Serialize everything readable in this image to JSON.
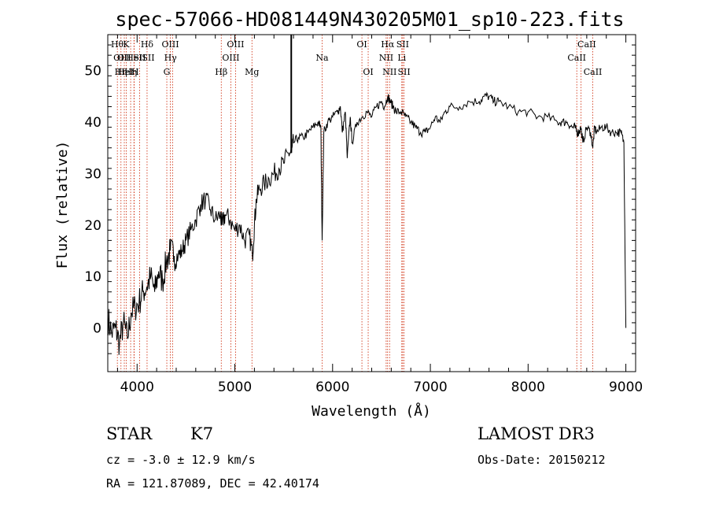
{
  "chart_data": {
    "type": "line",
    "title": "spec-57066-HD081449N430205M01_sp10-223.fits",
    "xlabel": "Wavelength (Å)",
    "ylabel": "Flux (relative)",
    "xlim": [
      3700,
      9100
    ],
    "ylim": [
      -8.5,
      57
    ],
    "xticks": [
      4000,
      5000,
      6000,
      7000,
      8000,
      9000
    ],
    "yticks": [
      0,
      10,
      20,
      30,
      40,
      50
    ],
    "series": [
      {
        "name": "flux",
        "x": [
          3700,
          3740,
          3780,
          3820,
          3860,
          3900,
          3940,
          3980,
          4020,
          4060,
          4100,
          4140,
          4180,
          4220,
          4260,
          4300,
          4340,
          4380,
          4420,
          4460,
          4500,
          4550,
          4600,
          4650,
          4700,
          4750,
          4800,
          4850,
          4870,
          4900,
          4950,
          5000,
          5050,
          5100,
          5150,
          5180,
          5200,
          5220,
          5250,
          5300,
          5350,
          5400,
          5450,
          5500,
          5550,
          5580,
          5600,
          5650,
          5700,
          5750,
          5800,
          5850,
          5880,
          5893,
          5910,
          5950,
          6000,
          6050,
          6080,
          6100,
          6130,
          6150,
          6180,
          6200,
          6250,
          6300,
          6350,
          6400,
          6450,
          6500,
          6530,
          6563,
          6590,
          6620,
          6650,
          6700,
          6750,
          6800,
          6850,
          6900,
          6950,
          7000,
          7050,
          7100,
          7150,
          7200,
          7300,
          7400,
          7500,
          7550,
          7600,
          7650,
          7700,
          7800,
          7900,
          8000,
          8100,
          8200,
          8300,
          8350,
          8400,
          8450,
          8480,
          8500,
          8520,
          8540,
          8560,
          8600,
          8640,
          8662,
          8680,
          8700,
          8750,
          8800,
          8850,
          8900,
          8950,
          8980,
          9000
        ],
        "y": [
          2,
          -1,
          0,
          -3,
          1,
          -2,
          3,
          4,
          5,
          7,
          8,
          10,
          7,
          11,
          9,
          13,
          15,
          14,
          14,
          15,
          17,
          19,
          21,
          24,
          25,
          23,
          21,
          22,
          20,
          22,
          21,
          19,
          20,
          17,
          18,
          14,
          20,
          25,
          27,
          28,
          29,
          30,
          31,
          32,
          34,
          34,
          36,
          37,
          37,
          38,
          39,
          40,
          39,
          17,
          38,
          40,
          41,
          42,
          43,
          38,
          42,
          33,
          41,
          36,
          40,
          41,
          42,
          41,
          43,
          44,
          43,
          45,
          44,
          43,
          42,
          42,
          41,
          40,
          39,
          38,
          38,
          39,
          41,
          40,
          42,
          43,
          43,
          44,
          44,
          45,
          45,
          44,
          44,
          43,
          42,
          42,
          41,
          41,
          40,
          40,
          40,
          39,
          39,
          38,
          38,
          39,
          36,
          39,
          38,
          35,
          39,
          38,
          39,
          39,
          38,
          38,
          38,
          36,
          0
        ]
      }
    ],
    "line_labels": [
      {
        "wl": 3797,
        "text": "Hθ",
        "row": 1
      },
      {
        "wl": 3829,
        "text": "OII",
        "row": 2
      },
      {
        "wl": 3835,
        "text": "Hη",
        "row": 3
      },
      {
        "wl": 3868,
        "text": "OII",
        "row": 2
      },
      {
        "wl": 3880,
        "text": "HeI",
        "row": 3
      },
      {
        "wl": 3889,
        "text": "K",
        "row": 1
      },
      {
        "wl": 3934,
        "text": "Hη",
        "row": 3
      },
      {
        "wl": 3970,
        "text": "HeI",
        "row": 2
      },
      {
        "wl": 3980,
        "text": "H",
        "row": 3
      },
      {
        "wl": 4026,
        "text": "SII",
        "row": 2
      },
      {
        "wl": 4102,
        "text": "Hδ",
        "row": 1
      },
      {
        "wl": 4114,
        "text": "SII",
        "row": 2
      },
      {
        "wl": 4340,
        "text": "OIII",
        "row": 1
      },
      {
        "wl": 4341,
        "text": "Hγ",
        "row": 2
      },
      {
        "wl": 4304,
        "text": "G",
        "row": 3
      },
      {
        "wl": 4861,
        "text": "Hβ",
        "row": 3
      },
      {
        "wl": 5007,
        "text": "OIII",
        "row": 1
      },
      {
        "wl": 4959,
        "text": "OIII",
        "row": 2
      },
      {
        "wl": 5175,
        "text": "Mg",
        "row": 3
      },
      {
        "wl": 5893,
        "text": "Na",
        "row": 2
      },
      {
        "wl": 6300,
        "text": "OI",
        "row": 1
      },
      {
        "wl": 6364,
        "text": "OI",
        "row": 3
      },
      {
        "wl": 6563,
        "text": "Hα",
        "row": 1
      },
      {
        "wl": 6548,
        "text": "NII",
        "row": 2
      },
      {
        "wl": 6583,
        "text": "NII",
        "row": 3
      },
      {
        "wl": 6717,
        "text": "SII",
        "row": 1
      },
      {
        "wl": 6708,
        "text": "Li",
        "row": 2
      },
      {
        "wl": 6731,
        "text": "SII",
        "row": 3
      },
      {
        "wl": 8600,
        "text": "CaII",
        "row": 1
      },
      {
        "wl": 8498,
        "text": "CaII",
        "row": 2
      },
      {
        "wl": 8662,
        "text": "CaII",
        "row": 3
      }
    ],
    "marker_lines": [
      3798,
      3835,
      3869,
      3889,
      3934,
      3968,
      3970,
      4026,
      4102,
      4304,
      4340,
      4363,
      4861,
      4959,
      5007,
      5175,
      5893,
      6300,
      6364,
      6548,
      6563,
      6583,
      6708,
      6717,
      6731,
      8498,
      8542,
      8662
    ],
    "reference_line_wl": 5577
  },
  "info": {
    "class": "STAR",
    "subclass": "K7",
    "survey": "LAMOST DR3",
    "cz": "cz = -3.0 ± 12.9 km/s",
    "obs_date": "Obs-Date: 20150212",
    "coords": "RA = 121.87089, DEC =  42.40174"
  },
  "colors": {
    "spectrum": "#000000",
    "marker": "#cc2200",
    "axes": "#000000"
  }
}
